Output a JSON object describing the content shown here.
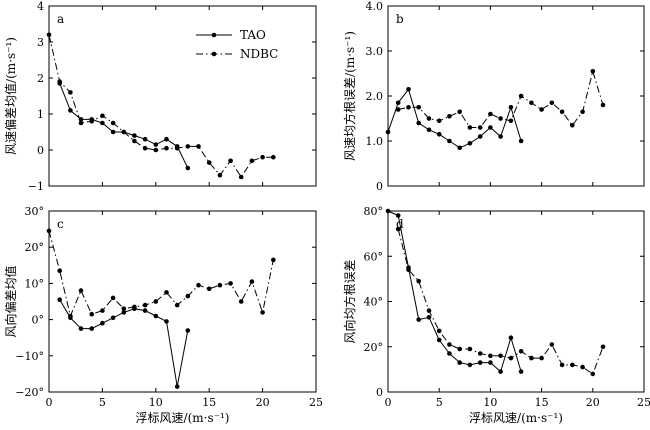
{
  "chart_data": [
    {
      "id": "a",
      "type": "line",
      "panel_label": "a",
      "ylabel": "风速偏差均值/(m·s⁻¹)",
      "xlabel": "",
      "xlim": [
        0,
        25
      ],
      "ylim": [
        -1,
        4
      ],
      "yticks": [
        -1,
        0,
        1,
        2,
        3,
        4
      ],
      "ytick_labels": [
        "−1",
        "0",
        "1",
        "2",
        "3",
        "4"
      ],
      "xticks": [],
      "xtick_labels": [],
      "legend": {
        "position": "top-right"
      },
      "series": [
        {
          "name": "TAO",
          "style": "solid",
          "x": [
            1,
            2,
            3,
            4,
            5,
            6,
            7,
            8,
            9,
            10,
            11,
            12,
            13
          ],
          "y": [
            1.85,
            1.1,
            0.85,
            0.85,
            0.75,
            0.5,
            0.5,
            0.4,
            0.3,
            0.15,
            0.3,
            0.1,
            -0.5
          ]
        },
        {
          "name": "NDBC",
          "style": "dashdot",
          "x": [
            0,
            1,
            2,
            3,
            4,
            5,
            6,
            7,
            8,
            9,
            10,
            11,
            12,
            13,
            14,
            15,
            16,
            17,
            18,
            19,
            20,
            21
          ],
          "y": [
            3.2,
            1.9,
            1.6,
            0.75,
            0.8,
            0.95,
            0.75,
            0.5,
            0.25,
            0.05,
            0.0,
            0.05,
            0.05,
            0.1,
            0.1,
            -0.35,
            -0.7,
            -0.3,
            -0.75,
            -0.3,
            -0.2,
            -0.2
          ]
        }
      ]
    },
    {
      "id": "b",
      "type": "line",
      "panel_label": "b",
      "ylabel": "风速均方根误差/(m·s⁻¹)",
      "xlabel": "",
      "xlim": [
        0,
        25
      ],
      "ylim": [
        0,
        4
      ],
      "yticks": [
        0,
        1,
        2,
        3,
        4
      ],
      "ytick_labels": [
        "0",
        "1.0",
        "2.0",
        "3.0",
        "4.0"
      ],
      "xticks": [],
      "xtick_labels": [],
      "series": [
        {
          "name": "TAO",
          "style": "solid",
          "x": [
            0,
            1,
            2,
            3,
            4,
            5,
            6,
            7,
            8,
            9,
            10,
            11,
            12,
            13
          ],
          "y": [
            1.2,
            1.85,
            2.15,
            1.4,
            1.25,
            1.15,
            1.0,
            0.85,
            0.95,
            1.1,
            1.3,
            1.1,
            1.75,
            1.0
          ]
        },
        {
          "name": "NDBC",
          "style": "dashdot",
          "x": [
            1,
            2,
            3,
            4,
            5,
            6,
            7,
            8,
            9,
            10,
            11,
            12,
            13,
            14,
            15,
            16,
            17,
            18,
            19,
            20,
            21
          ],
          "y": [
            1.7,
            1.75,
            1.75,
            1.5,
            1.45,
            1.55,
            1.65,
            1.3,
            1.3,
            1.6,
            1.5,
            1.45,
            2.0,
            1.85,
            1.7,
            1.85,
            1.65,
            1.35,
            1.65,
            2.55,
            1.8
          ]
        }
      ]
    },
    {
      "id": "c",
      "type": "line",
      "panel_label": "c",
      "ylabel": "风向偏差均值",
      "xlabel": "浮标风速/(m·s⁻¹)",
      "xlim": [
        0,
        25
      ],
      "ylim": [
        -20,
        30
      ],
      "yticks": [
        -20,
        -10,
        0,
        10,
        20,
        30
      ],
      "ytick_labels": [
        "−20°",
        "−10°",
        "0°",
        "10°",
        "20°",
        "30°"
      ],
      "xticks": [
        0,
        5,
        10,
        15,
        20,
        25
      ],
      "xtick_labels": [
        "0",
        "5",
        "10",
        "15",
        "20",
        "25"
      ],
      "series": [
        {
          "name": "TAO",
          "style": "solid",
          "x": [
            1,
            2,
            3,
            4,
            5,
            6,
            7,
            8,
            9,
            10,
            11,
            12,
            13
          ],
          "y": [
            5.5,
            0.5,
            -2.5,
            -2.5,
            -1.0,
            0.5,
            2.0,
            3.0,
            2.5,
            1.0,
            -0.5,
            -18.5,
            -3.0
          ]
        },
        {
          "name": "NDBC",
          "style": "dashdot",
          "x": [
            0,
            1,
            2,
            3,
            4,
            5,
            6,
            7,
            8,
            9,
            10,
            11,
            12,
            13,
            14,
            15,
            16,
            17,
            18,
            19,
            20,
            21
          ],
          "y": [
            24.5,
            13.5,
            1.0,
            8.0,
            1.5,
            2.5,
            6.0,
            3.0,
            3.5,
            4.0,
            5.0,
            7.5,
            4.0,
            6.5,
            9.5,
            8.5,
            9.5,
            10.0,
            5.0,
            10.5,
            2.0,
            16.5
          ]
        }
      ]
    },
    {
      "id": "d",
      "type": "line",
      "panel_label": "d",
      "ylabel": "风向均方根误差",
      "xlabel": "浮标风速/(m·s⁻¹)",
      "xlim": [
        0,
        25
      ],
      "ylim": [
        0,
        80
      ],
      "yticks": [
        0,
        20,
        40,
        60,
        80
      ],
      "ytick_labels": [
        "0",
        "20°",
        "40°",
        "60°",
        "80°"
      ],
      "xticks": [
        0,
        5,
        10,
        15,
        20,
        25
      ],
      "xtick_labels": [
        "0",
        "5",
        "10",
        "15",
        "20",
        "25"
      ],
      "series": [
        {
          "name": "TAO",
          "style": "solid",
          "x": [
            0,
            1,
            2,
            3,
            4,
            5,
            6,
            7,
            8,
            9,
            10,
            11,
            12,
            13
          ],
          "y": [
            80.0,
            78.0,
            55.0,
            32.0,
            33.0,
            23.0,
            17.0,
            13.0,
            12.0,
            13.0,
            13.0,
            9.0,
            24.0,
            9.0
          ]
        },
        {
          "name": "NDBC",
          "style": "dashdot",
          "x": [
            1,
            2,
            3,
            4,
            5,
            6,
            7,
            8,
            9,
            10,
            11,
            12,
            13,
            14,
            15,
            16,
            17,
            18,
            19,
            20,
            21
          ],
          "y": [
            72.0,
            54.0,
            49.0,
            36.0,
            27.0,
            21.0,
            19.0,
            19.0,
            17.0,
            16.0,
            16.0,
            15.0,
            18.0,
            15.0,
            15.0,
            21.0,
            12.0,
            12.0,
            11.0,
            8.0,
            20.0
          ]
        }
      ]
    }
  ]
}
